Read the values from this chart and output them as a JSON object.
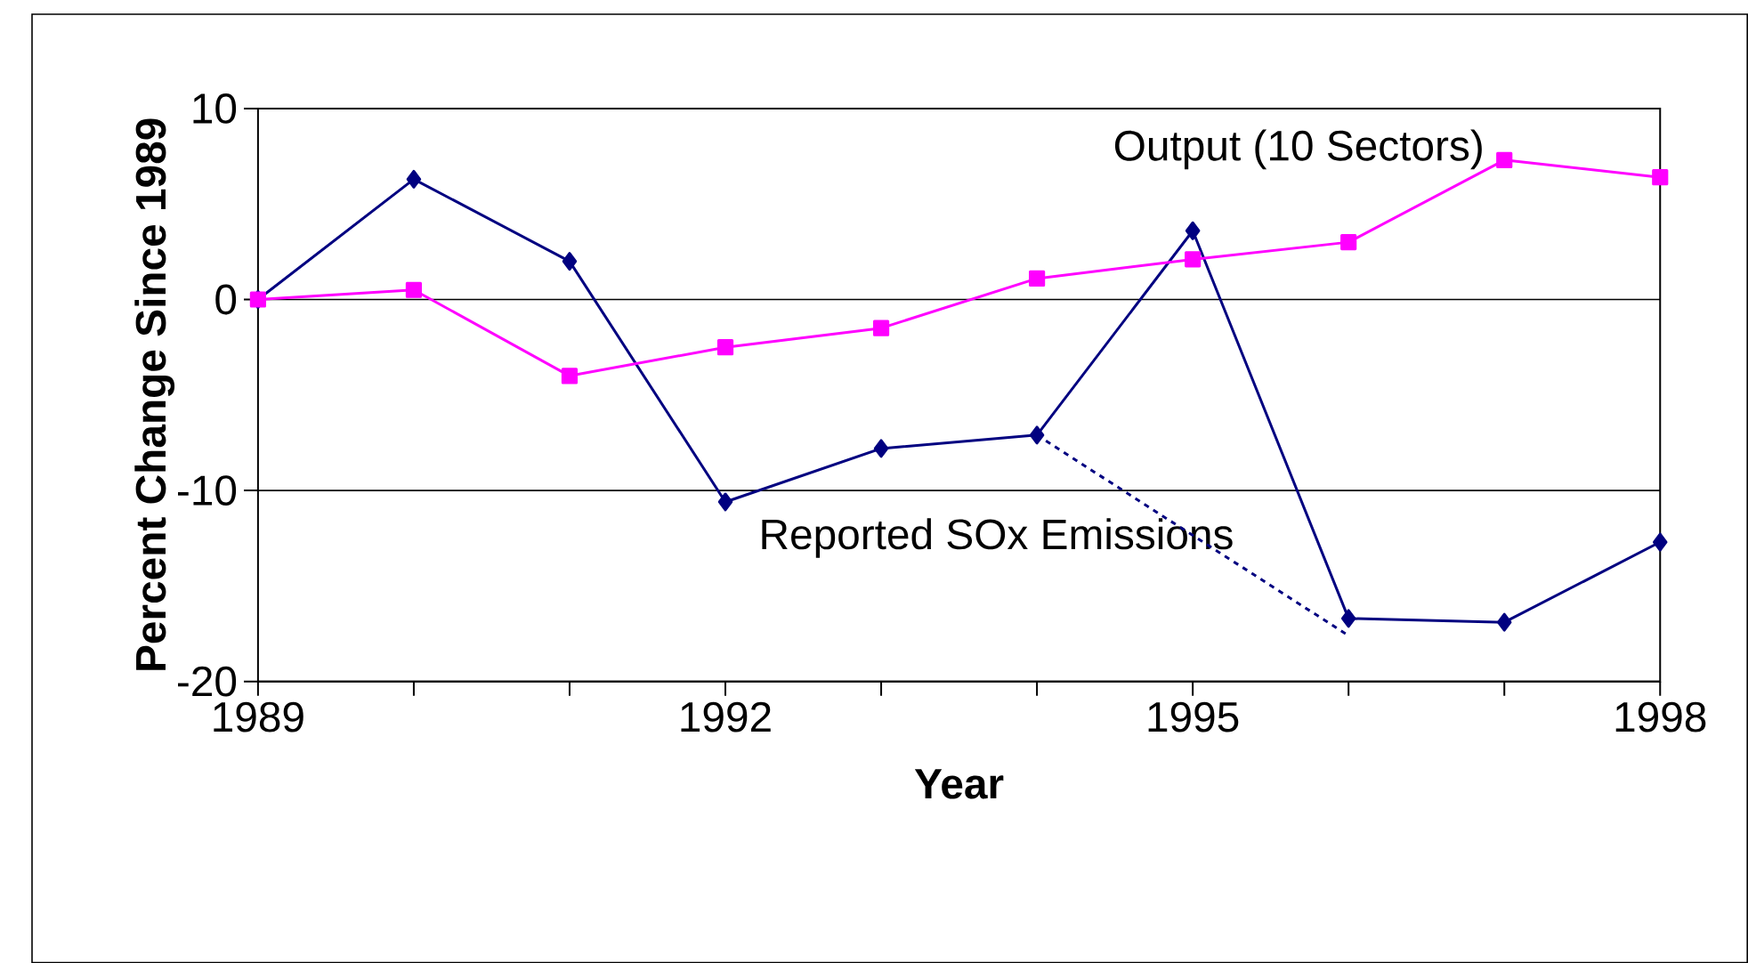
{
  "chart_data": {
    "type": "line",
    "xlabel": "Year",
    "ylabel": "Percent Change Since 1989",
    "x": [
      1989,
      1990,
      1991,
      1992,
      1993,
      1994,
      1995,
      1996,
      1997,
      1998
    ],
    "series": [
      {
        "name": "Reported SOx Emissions",
        "color": "#000080",
        "marker": "diamond",
        "values": [
          0,
          6.3,
          2.0,
          -10.6,
          -7.8,
          -7.1,
          3.6,
          -16.7,
          -16.9,
          -12.7
        ]
      },
      {
        "name": "Output (10 Sectors)",
        "color": "#ff00ff",
        "marker": "square",
        "values": [
          0,
          0.5,
          -4.0,
          -2.5,
          -1.5,
          1.1,
          2.1,
          3.0,
          7.3,
          6.4
        ]
      },
      {
        "color": "#000080",
        "marker": "none",
        "line_style": "dashed",
        "x": [
          1994,
          1996
        ],
        "values": [
          -7.1,
          -17.6
        ]
      }
    ],
    "xlim": [
      1989,
      1998
    ],
    "ylim": [
      -20,
      10
    ],
    "xticks": [
      1989,
      {
        "value": 1990,
        "label": null
      },
      {
        "value": 1991,
        "label": null
      },
      1992,
      {
        "value": 1993,
        "label": null
      },
      {
        "value": 1994,
        "label": null
      },
      1995,
      {
        "value": 1996,
        "label": null
      },
      {
        "value": 1997,
        "label": null
      },
      1998
    ],
    "yticks": [
      -20,
      -10,
      0,
      10
    ],
    "grid": "y"
  }
}
